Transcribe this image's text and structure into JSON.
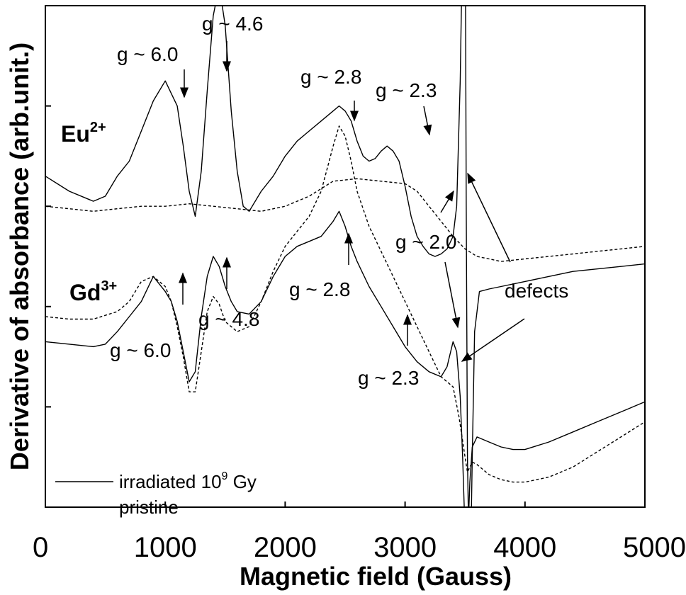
{
  "chart_data": {
    "type": "line",
    "xlabel": "Magnetic field (Gauss)",
    "ylabel": "Derivative of absorbance (arb.unit.)",
    "xlim": [
      0,
      5000
    ],
    "ylim": [
      0,
      10
    ],
    "y_tick_labels_shown": false,
    "x_ticks": [
      0,
      1000,
      2000,
      3000,
      4000,
      5000
    ],
    "x_tick_labels": [
      "0",
      "1000",
      "2000",
      "3000",
      "4000",
      "5000"
    ],
    "y_ticks": [
      2,
      4,
      6,
      8,
      10
    ],
    "grid": false,
    "legend": {
      "position": "bottom-left",
      "entries": [
        {
          "label": "irradiated 10",
          "superscript": "9",
          "suffix": " Gy",
          "style": "solid"
        },
        {
          "label": "pristine",
          "style": "dashed"
        }
      ]
    },
    "series_labels": [
      {
        "base": "Eu",
        "sup": "2+"
      },
      {
        "base": "Gd",
        "sup": "3+"
      }
    ],
    "annotations": [
      "g ~ 6.0",
      "g ~ 4.6",
      "g ~ 2.8",
      "g ~ 2.3",
      "g ~ 6.0",
      "g ~ 4.8",
      "g ~ 2.8",
      "g ~ 2.0",
      "g ~ 2.3",
      "defects"
    ],
    "series": [
      {
        "group": "Eu",
        "style": "solid",
        "x": [
          0,
          200,
          400,
          500,
          600,
          700,
          800,
          900,
          1000,
          1100,
          1150,
          1200,
          1250,
          1300,
          1350,
          1400,
          1450,
          1500,
          1550,
          1600,
          1650,
          1700,
          1800,
          1900,
          2000,
          2100,
          2200,
          2300,
          2400,
          2450,
          2500,
          2550,
          2600,
          2650,
          2700,
          2750,
          2800,
          2850,
          2900,
          2950,
          3000,
          3050,
          3100,
          3150,
          3200,
          3250,
          3300,
          3350,
          3400,
          3430,
          3460,
          3480,
          3500,
          3510,
          3520,
          3540,
          3560,
          3580,
          3620,
          3700,
          3800,
          4000,
          4200,
          4400,
          4600,
          4800,
          5000
        ],
        "y": [
          6.6,
          6.3,
          6.1,
          6.2,
          6.6,
          6.9,
          7.5,
          8.1,
          8.5,
          8.0,
          7.2,
          6.3,
          5.8,
          6.7,
          8.3,
          9.8,
          10.4,
          9.6,
          7.9,
          6.7,
          6.0,
          5.9,
          6.3,
          6.6,
          7.0,
          7.3,
          7.5,
          7.7,
          7.9,
          8.0,
          7.9,
          7.7,
          7.3,
          7.0,
          6.9,
          6.95,
          7.1,
          7.2,
          7.1,
          6.9,
          6.4,
          5.8,
          5.4,
          5.2,
          5.05,
          5.0,
          5.05,
          5.15,
          5.4,
          6.0,
          8.5,
          11.5,
          13.0,
          6.0,
          1.0,
          -2.0,
          1.0,
          3.5,
          4.3,
          4.35,
          4.4,
          4.5,
          4.6,
          4.7,
          4.75,
          4.8,
          4.85
        ]
      },
      {
        "group": "Eu",
        "style": "dashed",
        "x": [
          0,
          200,
          400,
          600,
          800,
          1000,
          1200,
          1400,
          1600,
          1800,
          2000,
          2200,
          2400,
          2600,
          2800,
          3000,
          3100,
          3200,
          3300,
          3400,
          3500,
          3600,
          3700,
          3800,
          4000,
          4200,
          4400,
          4600,
          4800,
          5000
        ],
        "y": [
          6.0,
          5.95,
          5.9,
          5.95,
          6.0,
          6.0,
          6.05,
          6.0,
          5.95,
          5.9,
          6.0,
          6.2,
          6.5,
          6.55,
          6.5,
          6.45,
          6.3,
          6.0,
          5.7,
          5.4,
          5.15,
          5.0,
          4.95,
          4.9,
          4.95,
          5.0,
          5.05,
          5.1,
          5.15,
          5.2
        ]
      },
      {
        "group": "Gd",
        "style": "solid",
        "x": [
          0,
          200,
          400,
          500,
          600,
          700,
          800,
          900,
          1000,
          1050,
          1100,
          1150,
          1200,
          1250,
          1300,
          1350,
          1400,
          1450,
          1500,
          1550,
          1600,
          1700,
          1800,
          1900,
          2000,
          2100,
          2200,
          2300,
          2400,
          2450,
          2500,
          2550,
          2600,
          2700,
          2800,
          2900,
          3000,
          3100,
          3200,
          3300,
          3350,
          3400,
          3430,
          3460,
          3480,
          3500,
          3520,
          3540,
          3560,
          3600,
          3700,
          3800,
          3900,
          4000,
          4200,
          4400,
          4600,
          4800,
          5000
        ],
        "y": [
          3.3,
          3.25,
          3.2,
          3.25,
          3.5,
          3.8,
          4.1,
          4.6,
          4.3,
          4.1,
          3.7,
          3.1,
          2.5,
          2.7,
          3.8,
          4.6,
          5.0,
          4.8,
          4.4,
          4.1,
          3.9,
          3.85,
          4.1,
          4.6,
          5.0,
          5.2,
          5.3,
          5.4,
          5.7,
          5.9,
          5.6,
          5.2,
          4.9,
          4.4,
          4.0,
          3.6,
          3.2,
          2.9,
          2.7,
          2.6,
          2.8,
          3.3,
          3.1,
          2.2,
          1.0,
          -0.5,
          -0.8,
          0.5,
          1.2,
          1.4,
          1.3,
          1.2,
          1.15,
          1.15,
          1.3,
          1.5,
          1.7,
          1.9,
          2.1
        ]
      },
      {
        "group": "Gd",
        "style": "dashed",
        "x": [
          0,
          200,
          400,
          600,
          700,
          800,
          900,
          1000,
          1050,
          1100,
          1150,
          1200,
          1250,
          1300,
          1350,
          1400,
          1450,
          1500,
          1600,
          1700,
          1800,
          1900,
          2000,
          2100,
          2200,
          2300,
          2400,
          2450,
          2500,
          2550,
          2600,
          2700,
          2800,
          2900,
          3000,
          3100,
          3200,
          3300,
          3400,
          3450,
          3500,
          3520,
          3540,
          3560,
          3600,
          3700,
          3800,
          3900,
          4000,
          4200,
          4400,
          4600,
          4800,
          5000
        ],
        "y": [
          3.8,
          3.75,
          3.75,
          3.9,
          4.1,
          4.5,
          4.6,
          4.4,
          4.1,
          3.6,
          3.0,
          2.3,
          2.3,
          3.1,
          3.9,
          4.2,
          4.05,
          3.7,
          3.5,
          3.6,
          4.1,
          4.7,
          5.2,
          5.5,
          5.8,
          6.3,
          7.2,
          7.6,
          7.4,
          6.9,
          6.3,
          5.6,
          5.1,
          4.6,
          4.1,
          3.6,
          3.1,
          2.6,
          2.4,
          1.8,
          1.0,
          0.7,
          0.8,
          0.9,
          0.85,
          0.65,
          0.55,
          0.5,
          0.5,
          0.6,
          0.8,
          1.1,
          1.4,
          1.7
        ]
      }
    ]
  }
}
